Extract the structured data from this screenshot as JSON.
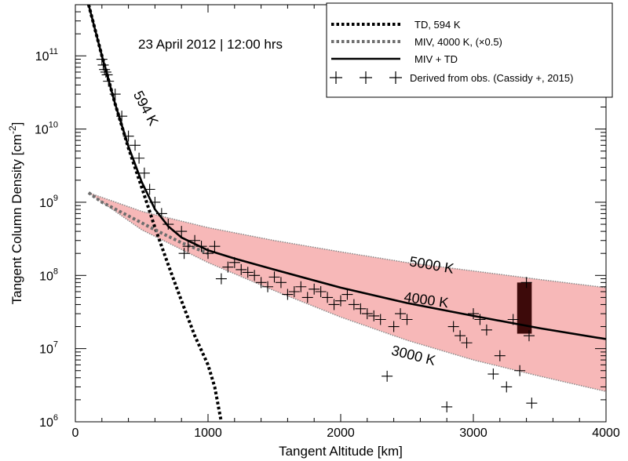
{
  "chart_data": {
    "type": "line",
    "date_annotation": "23 April 2012 | 12:00 hrs",
    "xlabel": "Tangent Altitude [km]",
    "ylabel": "Tangent Column Density [cm",
    "ylabel_sup": "-2",
    "ylabel_close": "]",
    "xlim": [
      0,
      4000
    ],
    "ylim": [
      1000000,
      500000000000
    ],
    "y_scale": "log",
    "x_ticks": [
      {
        "value": 0,
        "label": "0"
      },
      {
        "value": 1000,
        "label": "1000"
      },
      {
        "value": 2000,
        "label": "2000"
      },
      {
        "value": 3000,
        "label": "3000"
      },
      {
        "value": 4000,
        "label": "4000"
      }
    ],
    "y_ticks": [
      {
        "value": 1000000,
        "base": "10",
        "exp": "6"
      },
      {
        "value": 10000000,
        "base": "10",
        "exp": "7"
      },
      {
        "value": 100000000,
        "base": "10",
        "exp": "8"
      },
      {
        "value": 1000000000,
        "base": "10",
        "exp": "9"
      },
      {
        "value": 10000000000,
        "base": "10",
        "exp": "10"
      },
      {
        "value": 100000000000,
        "base": "10",
        "exp": "11"
      }
    ],
    "legend_position": "top-right",
    "colors": {
      "td": "#000000",
      "miv": "#6e6e6e",
      "sum": "#000000",
      "band_fill": "#f7b8b8",
      "band_edge": "#8a8a8a",
      "obs": "#000000",
      "dense_block": "#3d0a0a"
    },
    "annotations": [
      {
        "text": "594 K",
        "x": 500,
        "y": 18000000000,
        "rotate": 62
      },
      {
        "text": "5000 K",
        "x": 2680,
        "y": 120000000,
        "rotate": 10
      },
      {
        "text": "4000 K",
        "x": 2640,
        "y": 40000000,
        "rotate": 8
      },
      {
        "text": "3000 K",
        "x": 2540,
        "y": 7000000,
        "rotate": 14
      }
    ],
    "series": [
      {
        "name": "TD, 594 K",
        "style": "dotted-thick",
        "x": [
          100,
          200,
          300,
          400,
          500,
          600,
          700,
          800,
          900,
          1000,
          1050,
          1100
        ],
        "y": [
          500000000000,
          100000000000,
          22000000000,
          5500000000,
          1600000000,
          450000000,
          140000000,
          45000000,
          15000000,
          6000000,
          3000000,
          1000000
        ]
      },
      {
        "name": "MIV, 4000 K, (×0.5)",
        "style": "dotted-gray",
        "x": [
          100,
          200,
          400,
          600,
          800,
          1000
        ],
        "y": [
          1350000000,
          1000000000,
          650000000,
          420000000,
          280000000,
          200000000
        ]
      },
      {
        "name": "MIV + TD",
        "style": "solid",
        "x": [
          100,
          200,
          300,
          400,
          500,
          600,
          700,
          800,
          1000,
          1200,
          1500,
          2000,
          2500,
          3000,
          3500,
          4000
        ],
        "y": [
          500000000000,
          100000000000,
          22000000000,
          5800000000,
          1900000000,
          800000000,
          470000000,
          330000000,
          220000000,
          170000000,
          120000000,
          68000000,
          42000000,
          28000000,
          19000000,
          13500000
        ]
      },
      {
        "name": "Derived from obs. (Cassidy +, 2015)",
        "style": "plus",
        "x": [
          200,
          210,
          220,
          230,
          240,
          250,
          300,
          350,
          400,
          450,
          480,
          520,
          560,
          600,
          650,
          700,
          800,
          820,
          850,
          900,
          950,
          1000,
          1050,
          1100,
          1150,
          1200,
          1250,
          1300,
          1350,
          1400,
          1450,
          1500,
          1550,
          1600,
          1650,
          1700,
          1750,
          1800,
          1850,
          1900,
          1950,
          2000,
          2050,
          2100,
          2150,
          2200,
          2250,
          2300,
          2350,
          2400,
          2450,
          2500,
          2800,
          2850,
          2900,
          2950,
          3000,
          3050,
          3100,
          3150,
          3200,
          3250,
          3300,
          3350,
          3400,
          3420,
          3440
        ],
        "y": [
          90000000000,
          75000000000,
          65000000000,
          60000000000,
          55000000000,
          45000000000,
          30000000000,
          15000000000,
          8000000000,
          6000000000,
          4000000000,
          2500000000,
          1500000000,
          1000000000,
          700000000,
          500000000,
          400000000,
          200000000,
          250000000,
          300000000,
          250000000,
          200000000,
          250000000,
          90000000,
          130000000,
          150000000,
          120000000,
          110000000,
          100000000,
          80000000,
          70000000,
          95000000,
          80000000,
          55000000,
          60000000,
          70000000,
          50000000,
          65000000,
          60000000,
          50000000,
          40000000,
          45000000,
          55000000,
          40000000,
          35000000,
          30000000,
          28000000,
          25000000,
          4200000,
          20000000,
          30000000,
          25000000,
          1600000,
          20000000,
          15000000,
          12000000,
          30000000,
          25000000,
          18000000,
          4500000,
          8000000,
          3000000,
          25000000,
          5000000,
          80000000,
          15000000,
          1800000
        ]
      }
    ],
    "band": {
      "name": "3000 K – 5000 K range",
      "x": [
        100,
        500,
        1000,
        1500,
        2000,
        2500,
        3000,
        3500,
        4000
      ],
      "upper": [
        1350000000,
        750000000,
        450000000,
        300000000,
        210000000,
        150000000,
        115000000,
        88000000,
        68000000
      ],
      "lower": [
        1350000000,
        420000000,
        150000000,
        62000000,
        27000000,
        13000000,
        7000000,
        4200000,
        2600000
      ]
    },
    "dense_block": {
      "x0": 3330,
      "x1": 3440,
      "y0": 16000000,
      "y1": 80000000
    }
  }
}
